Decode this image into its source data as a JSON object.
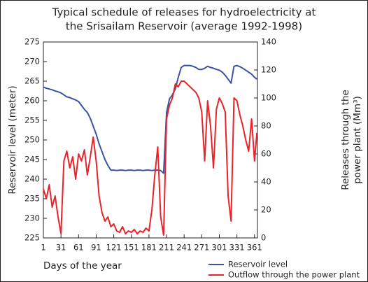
{
  "chart_data": {
    "type": "line",
    "title": [
      "Typical schedule of releases for hydroelectricity at",
      "the Srisailam Reservoir (average 1992-1998)"
    ],
    "xlabel": "Days of the year",
    "ylabel": "Reservoir level (meter)",
    "y2label": [
      "Releases through the",
      "power plant (Mm³)"
    ],
    "x": [
      1,
      6,
      11,
      16,
      21,
      26,
      31,
      36,
      41,
      46,
      51,
      56,
      61,
      66,
      71,
      76,
      81,
      86,
      91,
      96,
      101,
      106,
      111,
      116,
      121,
      126,
      131,
      136,
      141,
      146,
      151,
      156,
      161,
      166,
      171,
      176,
      181,
      186,
      191,
      196,
      201,
      206,
      211,
      216,
      221,
      226,
      231,
      236,
      241,
      246,
      251,
      256,
      261,
      266,
      271,
      276,
      281,
      286,
      291,
      296,
      301,
      306,
      311,
      316,
      321,
      326,
      331,
      336,
      341,
      346,
      351,
      356,
      361,
      365
    ],
    "series": [
      {
        "name": "Reservoir level",
        "color": "#3a54a4",
        "axis": "y",
        "values": [
          263.5,
          263.2,
          263,
          262.8,
          262.5,
          262.3,
          262,
          261.5,
          261,
          260.8,
          260.5,
          260.2,
          259.8,
          258.8,
          257.8,
          257,
          255.5,
          253.5,
          251.5,
          249,
          247,
          245,
          243.5,
          242.3,
          242.3,
          242.2,
          242.3,
          242.3,
          242.2,
          242.3,
          242.3,
          242.2,
          242.3,
          242.3,
          242.2,
          242.3,
          242.3,
          242.2,
          242.3,
          242.3,
          242.2,
          241.5,
          257,
          260.5,
          261.5,
          263,
          266,
          268.5,
          269,
          269,
          269,
          268.8,
          268.5,
          268,
          268,
          268.3,
          268.8,
          268.5,
          268.3,
          268,
          267.8,
          267.3,
          266.5,
          265.5,
          264.5,
          268.8,
          269,
          268.7,
          268.3,
          267.8,
          267.3,
          266.8,
          266,
          265.5
        ]
      },
      {
        "name": "Outflow through the power plant",
        "color": "#e8232a",
        "axis": "y2",
        "values": [
          35,
          28,
          38,
          22,
          30,
          15,
          3,
          55,
          62,
          50,
          58,
          42,
          60,
          55,
          63,
          45,
          58,
          72,
          55,
          30,
          18,
          12,
          15,
          8,
          10,
          5,
          4,
          8,
          3,
          5,
          4,
          6,
          3,
          5,
          4,
          7,
          5,
          20,
          45,
          65,
          15,
          2,
          85,
          95,
          100,
          110,
          108,
          112,
          112,
          110,
          108,
          106,
          104,
          100,
          90,
          55,
          98,
          80,
          50,
          92,
          100,
          96,
          90,
          30,
          12,
          100,
          98,
          88,
          80,
          70,
          62,
          85,
          55,
          75
        ]
      }
    ],
    "xlim": [
      1,
      366
    ],
    "xticks": [
      1,
      31,
      61,
      91,
      121,
      151,
      181,
      211,
      241,
      271,
      301,
      331,
      361
    ],
    "ylim": [
      225,
      275
    ],
    "yticks": [
      225,
      230,
      235,
      240,
      245,
      250,
      255,
      260,
      265,
      270,
      275
    ],
    "y2lim": [
      0,
      140
    ],
    "y2ticks": [
      0,
      20,
      40,
      60,
      80,
      100,
      120,
      140
    ]
  }
}
